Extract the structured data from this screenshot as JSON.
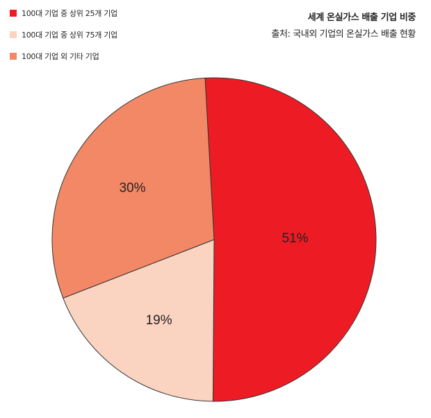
{
  "chart_data": {
    "type": "pie",
    "title": "세계 온실가스 배출 기업 비중",
    "subtitle": "출처: 국내외 기업의 온실가스 배출 현황",
    "legend_position": "top-left",
    "slices": [
      {
        "name": "100대 기업 중 상위 25개 기업",
        "value": 51,
        "label": "51%",
        "color": "#ed1c24"
      },
      {
        "name": "100대 기업 중 상위 75개 기업",
        "value": 19,
        "label": "19%",
        "color": "#fbd3c1"
      },
      {
        "name": "100대 기업 외 기타 기업",
        "value": 30,
        "label": "30%",
        "color": "#f38866"
      }
    ]
  }
}
